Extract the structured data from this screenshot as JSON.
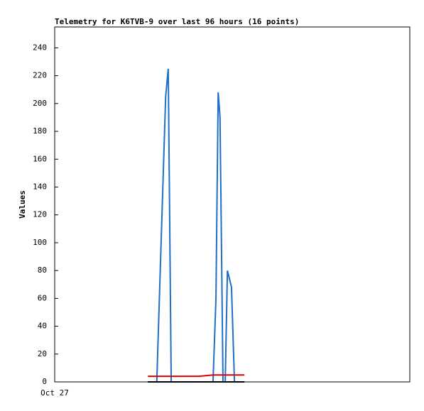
{
  "chart_data": {
    "type": "line",
    "title": "Telemetry for K6TVB-9 over last 96 hours (16 points)",
    "y_label": "Values",
    "x": [
      25.2,
      27.6,
      30.0,
      30.7,
      31.5,
      39.0,
      42.8,
      43.6,
      44.2,
      44.7,
      45.5,
      46.1,
      46.7,
      47.8,
      48.6,
      51.3
    ],
    "xlim": [
      0,
      96
    ],
    "xticks": [
      {
        "value": 0,
        "label": "Oct 27"
      }
    ],
    "ylim": [
      0,
      255
    ],
    "yticks": [
      0,
      20,
      40,
      60,
      80,
      100,
      120,
      140,
      160,
      180,
      200,
      220,
      240
    ],
    "series": [
      {
        "color": "#1f6fc6",
        "values": [
          0,
          0,
          205,
          225,
          0,
          0,
          0,
          60,
          208,
          190,
          0,
          0,
          80,
          68,
          0,
          0
        ]
      },
      {
        "color": "#e00000",
        "values": [
          4,
          4,
          4,
          4,
          4,
          4,
          5,
          5,
          5,
          5,
          5,
          5,
          5,
          5,
          5,
          5
        ]
      },
      {
        "color": "#000000",
        "values": [
          0,
          0,
          0,
          0,
          0,
          0,
          0,
          0,
          0,
          0,
          0,
          0,
          0,
          0,
          0,
          0
        ]
      }
    ]
  }
}
